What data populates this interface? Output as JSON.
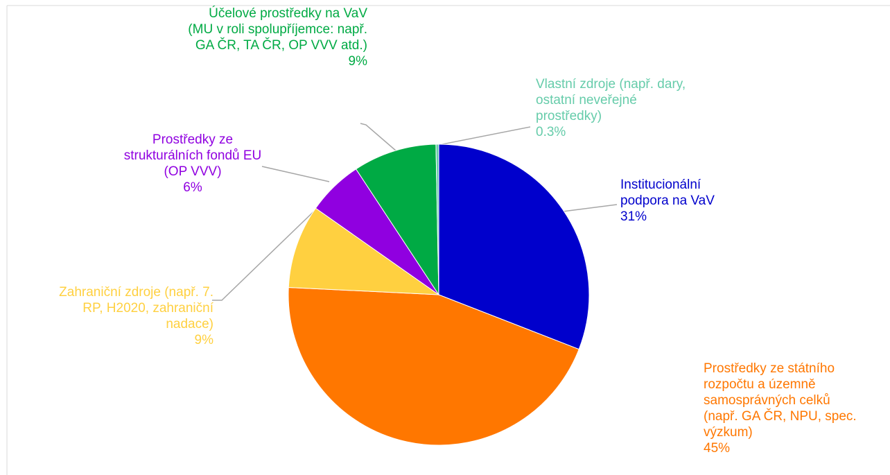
{
  "chart_data": {
    "type": "pie",
    "categories": [
      "Institucionální podpora na VaV",
      "Prostředky ze státního rozpočtu a územně samosprávných celků (např. GA ČR, NPU, spec. výzkum)",
      "Zahraniční zdroje (např. 7. RP, H2020, zahraniční nadace)",
      "Prostředky ze strukturálních fondů EU (OP VVV)",
      "Účelové prostředky na VaV (MU v roli spolupříjemce: např. GA ČR, TA ČR, OP VVV atd.)",
      "Vlastní zdroje (např. dary, ostatní neveřejné prostředky)"
    ],
    "values": [
      31,
      45,
      9,
      6,
      9,
      0.3
    ],
    "value_labels": [
      "31%",
      "45%",
      "9%",
      "6%",
      "9%",
      "0.3%"
    ],
    "colors": [
      "#0000cc",
      "#ff7700",
      "#ffd040",
      "#9000e0",
      "#00aa44",
      "#66ccaa"
    ]
  }
}
